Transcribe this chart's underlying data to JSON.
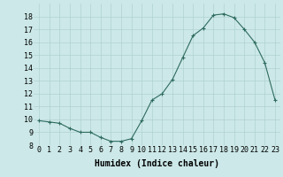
{
  "x": [
    0,
    1,
    2,
    3,
    4,
    5,
    6,
    7,
    8,
    9,
    10,
    11,
    12,
    13,
    14,
    15,
    16,
    17,
    18,
    19,
    20,
    21,
    22,
    23
  ],
  "y": [
    9.9,
    9.8,
    9.7,
    9.3,
    9.0,
    9.0,
    8.6,
    8.3,
    8.3,
    8.5,
    9.9,
    11.5,
    12.0,
    13.1,
    14.8,
    16.5,
    17.1,
    18.1,
    18.2,
    17.9,
    17.0,
    16.0,
    14.4,
    11.5
  ],
  "xlabel": "Humidex (Indice chaleur)",
  "ylim": [
    8,
    19
  ],
  "xlim": [
    -0.5,
    23.5
  ],
  "yticks": [
    8,
    9,
    10,
    11,
    12,
    13,
    14,
    15,
    16,
    17,
    18
  ],
  "xticks": [
    0,
    1,
    2,
    3,
    4,
    5,
    6,
    7,
    8,
    9,
    10,
    11,
    12,
    13,
    14,
    15,
    16,
    17,
    18,
    19,
    20,
    21,
    22,
    23
  ],
  "line_color": "#2e6b5e",
  "marker": "+",
  "bg_color": "#cce8e8",
  "grid_color": "#aacccc",
  "xlabel_fontsize": 7,
  "tick_fontsize": 6,
  "linewidth": 0.8,
  "markersize": 3,
  "markeredgewidth": 0.8
}
